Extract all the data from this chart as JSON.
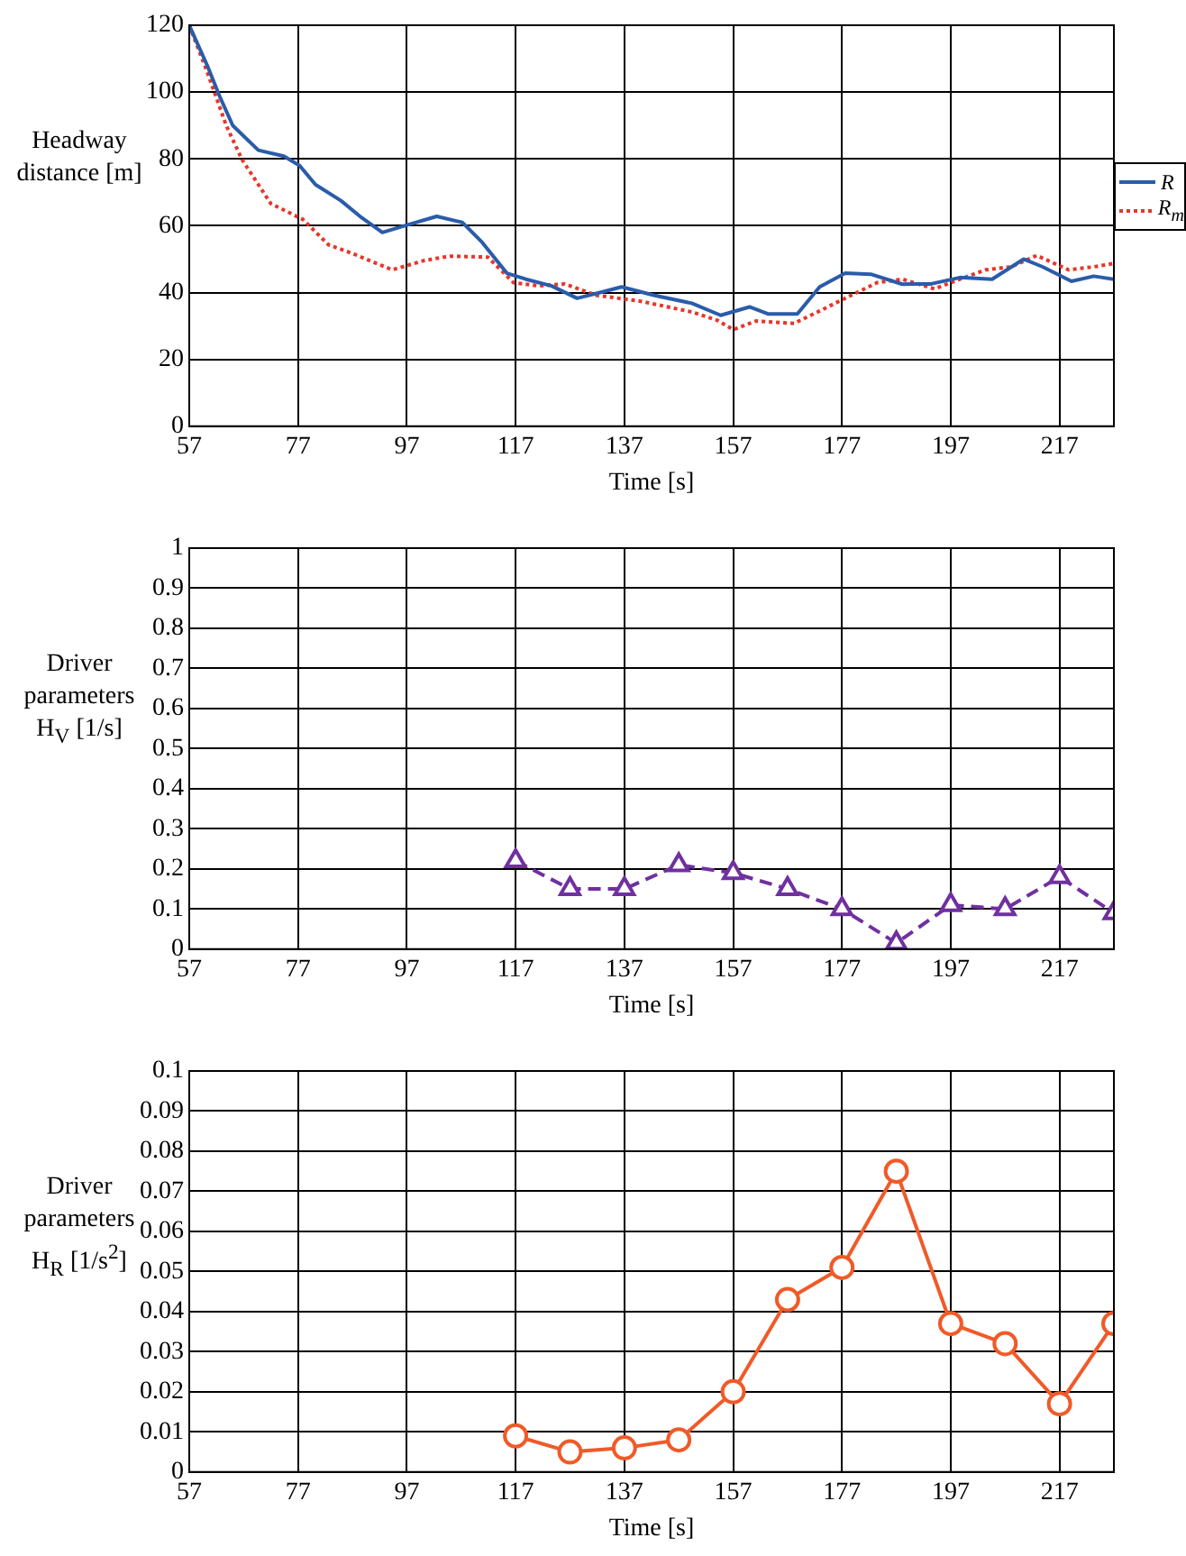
{
  "chart_data": [
    {
      "type": "line",
      "ylabel": "Headway distance [m]",
      "xlabel": "Time [s]",
      "xlim": [
        57,
        227
      ],
      "xticks": [
        57,
        77,
        97,
        117,
        137,
        157,
        177,
        197,
        217
      ],
      "ylim": [
        0,
        120
      ],
      "yticks": [
        0,
        20,
        40,
        60,
        80,
        100,
        120
      ],
      "grid": true,
      "legend": "right",
      "marker": "none",
      "series": [
        {
          "name": "R",
          "color": "#2a5caa",
          "line_style": "solid",
          "x": [
            57,
            60.3,
            62.6,
            65,
            69.7,
            74.4,
            77.3,
            80.2,
            84.9,
            88.4,
            92.5,
            96.6,
            102.5,
            107.2,
            110.7,
            115.4,
            118.9,
            123.6,
            128.3,
            133,
            136.5,
            142.4,
            149.4,
            154.7,
            160,
            163.5,
            168.8,
            172.9,
            177.6,
            182.3,
            188.1,
            193.4,
            198.7,
            204.6,
            210.4,
            213.9,
            219.2,
            223.3,
            227
          ],
          "values": [
            120,
            108,
            98.7,
            90,
            82.6,
            80.8,
            78,
            72.3,
            67.5,
            62.8,
            58,
            60,
            62.8,
            61,
            55.3,
            45.8,
            44,
            42,
            38.3,
            40.2,
            41.7,
            39.2,
            36.8,
            33.2,
            35.7,
            33.6,
            33.6,
            41.7,
            45.8,
            45.5,
            42.5,
            42.6,
            44.5,
            44,
            50,
            47.7,
            43.4,
            44.9,
            44
          ]
        },
        {
          "name": "R$_{m}$",
          "color": "#e8352a",
          "line_style": "dotted",
          "x": [
            57,
            60.3,
            63.8,
            66.7,
            72,
            77.9,
            82.6,
            87.3,
            94.3,
            100.2,
            104.9,
            111.9,
            116.6,
            121.3,
            126,
            131.8,
            140,
            149.4,
            154.1,
            157,
            161.2,
            168.2,
            172.9,
            177.6,
            183.5,
            188.1,
            194,
            198.7,
            203.4,
            208.1,
            212.8,
            218.7,
            223.3,
            227
          ],
          "values": [
            120,
            106,
            90,
            79.8,
            66.6,
            61.9,
            54.3,
            51.5,
            46.8,
            49.6,
            50.9,
            50.6,
            43,
            42,
            42.6,
            39.2,
            37.4,
            34.2,
            31.7,
            28.9,
            31.5,
            30.8,
            34.5,
            38.3,
            43,
            44,
            41.1,
            44,
            46.8,
            47.7,
            51.1,
            46.8,
            47.7,
            48.7
          ]
        }
      ]
    },
    {
      "type": "line",
      "ylabel": "Driver parameters H$_{V}$ [1/s]",
      "xlabel": "Time [s]",
      "xlim": [
        57,
        227
      ],
      "xticks": [
        57,
        77,
        97,
        117,
        137,
        157,
        177,
        197,
        217
      ],
      "ylim": [
        0,
        1
      ],
      "yticks": [
        0,
        0.1,
        0.2,
        0.3,
        0.4,
        0.5,
        0.6,
        0.7,
        0.8,
        0.9,
        1
      ],
      "grid": true,
      "marker": "triangle",
      "line_style": "dashed",
      "color": "#7030a0",
      "x": [
        117,
        127,
        137,
        147,
        157,
        167,
        177,
        187,
        197,
        207,
        217,
        227
      ],
      "values": [
        0.22,
        0.15,
        0.15,
        0.21,
        0.19,
        0.15,
        0.1,
        0.015,
        0.11,
        0.1,
        0.18,
        0.09
      ]
    },
    {
      "type": "line",
      "ylabel": "Driver parameters H$_{R}$ [1/s$^{2}$]",
      "xlabel": "Time [s]",
      "xlim": [
        57,
        227
      ],
      "xticks": [
        57,
        77,
        97,
        117,
        137,
        157,
        177,
        197,
        217
      ],
      "ylim": [
        0,
        0.1
      ],
      "yticks": [
        0,
        0.01,
        0.02,
        0.03,
        0.04,
        0.05,
        0.06,
        0.07,
        0.08,
        0.09,
        0.1
      ],
      "grid": true,
      "marker": "circle",
      "line_style": "solid",
      "color": "#f05a28",
      "x": [
        117,
        127,
        137,
        147,
        157,
        167,
        177,
        187,
        197,
        207,
        217,
        227
      ],
      "values": [
        0.009,
        0.005,
        0.006,
        0.008,
        0.02,
        0.043,
        0.051,
        0.075,
        0.037,
        0.032,
        0.017,
        0.037
      ]
    }
  ]
}
